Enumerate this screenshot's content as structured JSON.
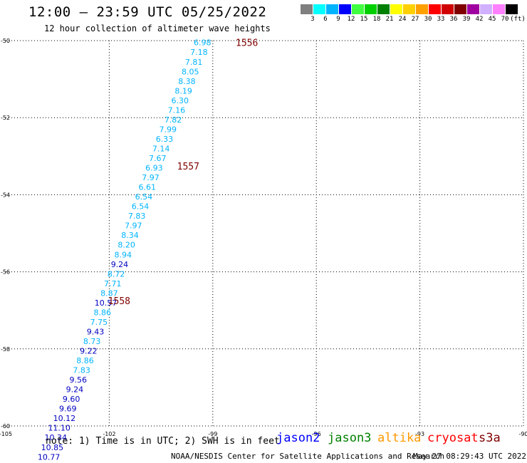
{
  "header": {
    "title": "12:00 — 23:59 UTC 05/25/2022",
    "subtitle": "12 hour collection of altimeter wave heights"
  },
  "legend": {
    "colors": [
      "#808080",
      "#00ffff",
      "#00b4ff",
      "#0000ff",
      "#40ff40",
      "#00d000",
      "#008000",
      "#ffff00",
      "#ffd000",
      "#ffa000",
      "#ff0000",
      "#d00000",
      "#800000",
      "#a000a0",
      "#d0b0ff",
      "#ff80ff",
      "#000000"
    ],
    "labels": [
      "3",
      "6",
      "9",
      "12",
      "15",
      "18",
      "21",
      "24",
      "27",
      "30",
      "33",
      "36",
      "39",
      "42",
      "45",
      "70",
      "(ft)"
    ]
  },
  "axes": {
    "lat_labels": [
      "-50",
      "-52",
      "-54",
      "-56",
      "-58",
      "-60"
    ],
    "lon_labels": [
      "-105",
      "-102",
      "-99",
      "-96",
      "-93",
      "-90"
    ]
  },
  "chart_data": {
    "type": "scatter",
    "xlim": [
      -105,
      -90
    ],
    "ylim": [
      -60,
      -50
    ],
    "x_ticks": [
      -105,
      -102,
      -99,
      -96,
      -93,
      -90
    ],
    "y_ticks": [
      -50,
      -52,
      -54,
      -56,
      -58,
      -60
    ],
    "grid": true,
    "time_marks": [
      {
        "label": "1556",
        "lon": -98.5,
        "lat": -50.05
      },
      {
        "label": "1557",
        "lon": -100.2,
        "lat": -53.25
      },
      {
        "label": "1558",
        "lon": -102.2,
        "lat": -56.75
      }
    ],
    "points": [
      {
        "v": "6.98",
        "lon": -99.3,
        "lat": -50.05,
        "c": "#00b4ff"
      },
      {
        "v": "7.18",
        "lon": -99.4,
        "lat": -50.3,
        "c": "#00b4ff"
      },
      {
        "v": "7.81",
        "lon": -99.55,
        "lat": -50.55,
        "c": "#00b4ff"
      },
      {
        "v": "8.05",
        "lon": -99.65,
        "lat": -50.8,
        "c": "#00b4ff"
      },
      {
        "v": "8.38",
        "lon": -99.75,
        "lat": -51.05,
        "c": "#00b4ff"
      },
      {
        "v": "8.19",
        "lon": -99.85,
        "lat": -51.3,
        "c": "#00b4ff"
      },
      {
        "v": "6.30",
        "lon": -99.95,
        "lat": -51.55,
        "c": "#00b4ff"
      },
      {
        "v": "7.16",
        "lon": -100.05,
        "lat": -51.8,
        "c": "#00b4ff"
      },
      {
        "v": "7.82",
        "lon": -100.15,
        "lat": -52.05,
        "c": "#00b4ff"
      },
      {
        "v": "7.99",
        "lon": -100.3,
        "lat": -52.3,
        "c": "#00b4ff"
      },
      {
        "v": "6.33",
        "lon": -100.4,
        "lat": -52.55,
        "c": "#00b4ff"
      },
      {
        "v": "7.14",
        "lon": -100.5,
        "lat": -52.8,
        "c": "#00b4ff"
      },
      {
        "v": "7.67",
        "lon": -100.6,
        "lat": -53.05,
        "c": "#00b4ff"
      },
      {
        "v": "6.93",
        "lon": -100.7,
        "lat": -53.3,
        "c": "#00b4ff"
      },
      {
        "v": "7.97",
        "lon": -100.8,
        "lat": -53.55,
        "c": "#00b4ff"
      },
      {
        "v": "6.61",
        "lon": -100.9,
        "lat": -53.8,
        "c": "#00b4ff"
      },
      {
        "v": "6.54",
        "lon": -101.0,
        "lat": -54.05,
        "c": "#00b4ff"
      },
      {
        "v": "6.54",
        "lon": -101.1,
        "lat": -54.3,
        "c": "#00b4ff"
      },
      {
        "v": "7.83",
        "lon": -101.2,
        "lat": -54.55,
        "c": "#00b4ff"
      },
      {
        "v": "7.97",
        "lon": -101.3,
        "lat": -54.8,
        "c": "#00b4ff"
      },
      {
        "v": "8.34",
        "lon": -101.4,
        "lat": -55.05,
        "c": "#00b4ff"
      },
      {
        "v": "8.20",
        "lon": -101.5,
        "lat": -55.3,
        "c": "#00b4ff"
      },
      {
        "v": "8.94",
        "lon": -101.6,
        "lat": -55.55,
        "c": "#00b4ff"
      },
      {
        "v": "9.24",
        "lon": -101.7,
        "lat": -55.8,
        "c": "#0000c0"
      },
      {
        "v": "8.72",
        "lon": -101.8,
        "lat": -56.05,
        "c": "#00b4ff"
      },
      {
        "v": "7.71",
        "lon": -101.9,
        "lat": -56.3,
        "c": "#00b4ff"
      },
      {
        "v": "8.87",
        "lon": -102.0,
        "lat": -56.55,
        "c": "#00b4ff"
      },
      {
        "v": "10.57",
        "lon": -102.1,
        "lat": -56.8,
        "c": "#0000c0"
      },
      {
        "v": "8.86",
        "lon": -102.2,
        "lat": -57.05,
        "c": "#00b4ff"
      },
      {
        "v": "7.75",
        "lon": -102.3,
        "lat": -57.3,
        "c": "#00b4ff"
      },
      {
        "v": "9.43",
        "lon": -102.4,
        "lat": -57.55,
        "c": "#0000c0"
      },
      {
        "v": "8.73",
        "lon": -102.5,
        "lat": -57.8,
        "c": "#00b4ff"
      },
      {
        "v": "9.22",
        "lon": -102.6,
        "lat": -58.05,
        "c": "#0000c0"
      },
      {
        "v": "8.86",
        "lon": -102.7,
        "lat": -58.3,
        "c": "#00b4ff"
      },
      {
        "v": "7.83",
        "lon": -102.8,
        "lat": -58.55,
        "c": "#00b4ff"
      },
      {
        "v": "9.56",
        "lon": -102.9,
        "lat": -58.8,
        "c": "#0000c0"
      },
      {
        "v": "9.24",
        "lon": -103.0,
        "lat": -59.05,
        "c": "#0000c0"
      },
      {
        "v": "9.60",
        "lon": -103.1,
        "lat": -59.3,
        "c": "#0000c0"
      },
      {
        "v": "9.69",
        "lon": -103.2,
        "lat": -59.55,
        "c": "#0000c0"
      },
      {
        "v": "10.12",
        "lon": -103.3,
        "lat": -59.8,
        "c": "#0000c0"
      },
      {
        "v": "11.10",
        "lon": -103.45,
        "lat": -60.05,
        "c": "#0000c0"
      },
      {
        "v": "10.34",
        "lon": -103.55,
        "lat": -60.3,
        "c": "#0000c0"
      },
      {
        "v": "10.85",
        "lon": -103.65,
        "lat": -60.55,
        "c": "#0000c0"
      },
      {
        "v": "10.77",
        "lon": -103.75,
        "lat": -60.8,
        "c": "#0000c0"
      }
    ]
  },
  "footer": {
    "note": "note: 1) Time is in UTC; 2) SWH is in feet",
    "satellites": [
      {
        "name": "jason2",
        "color": "#0000ff"
      },
      {
        "name": "jason3",
        "color": "#008000"
      },
      {
        "name": "altika",
        "color": "#ff9900"
      },
      {
        "name": "cryosat",
        "color": "#ff0000"
      },
      {
        "name": "s3a",
        "color": "#800000"
      }
    ],
    "source": "NOAA/NESDIS Center for Satellite Applications and Research",
    "generated": "May 27 08:29:43 UTC 2022"
  }
}
